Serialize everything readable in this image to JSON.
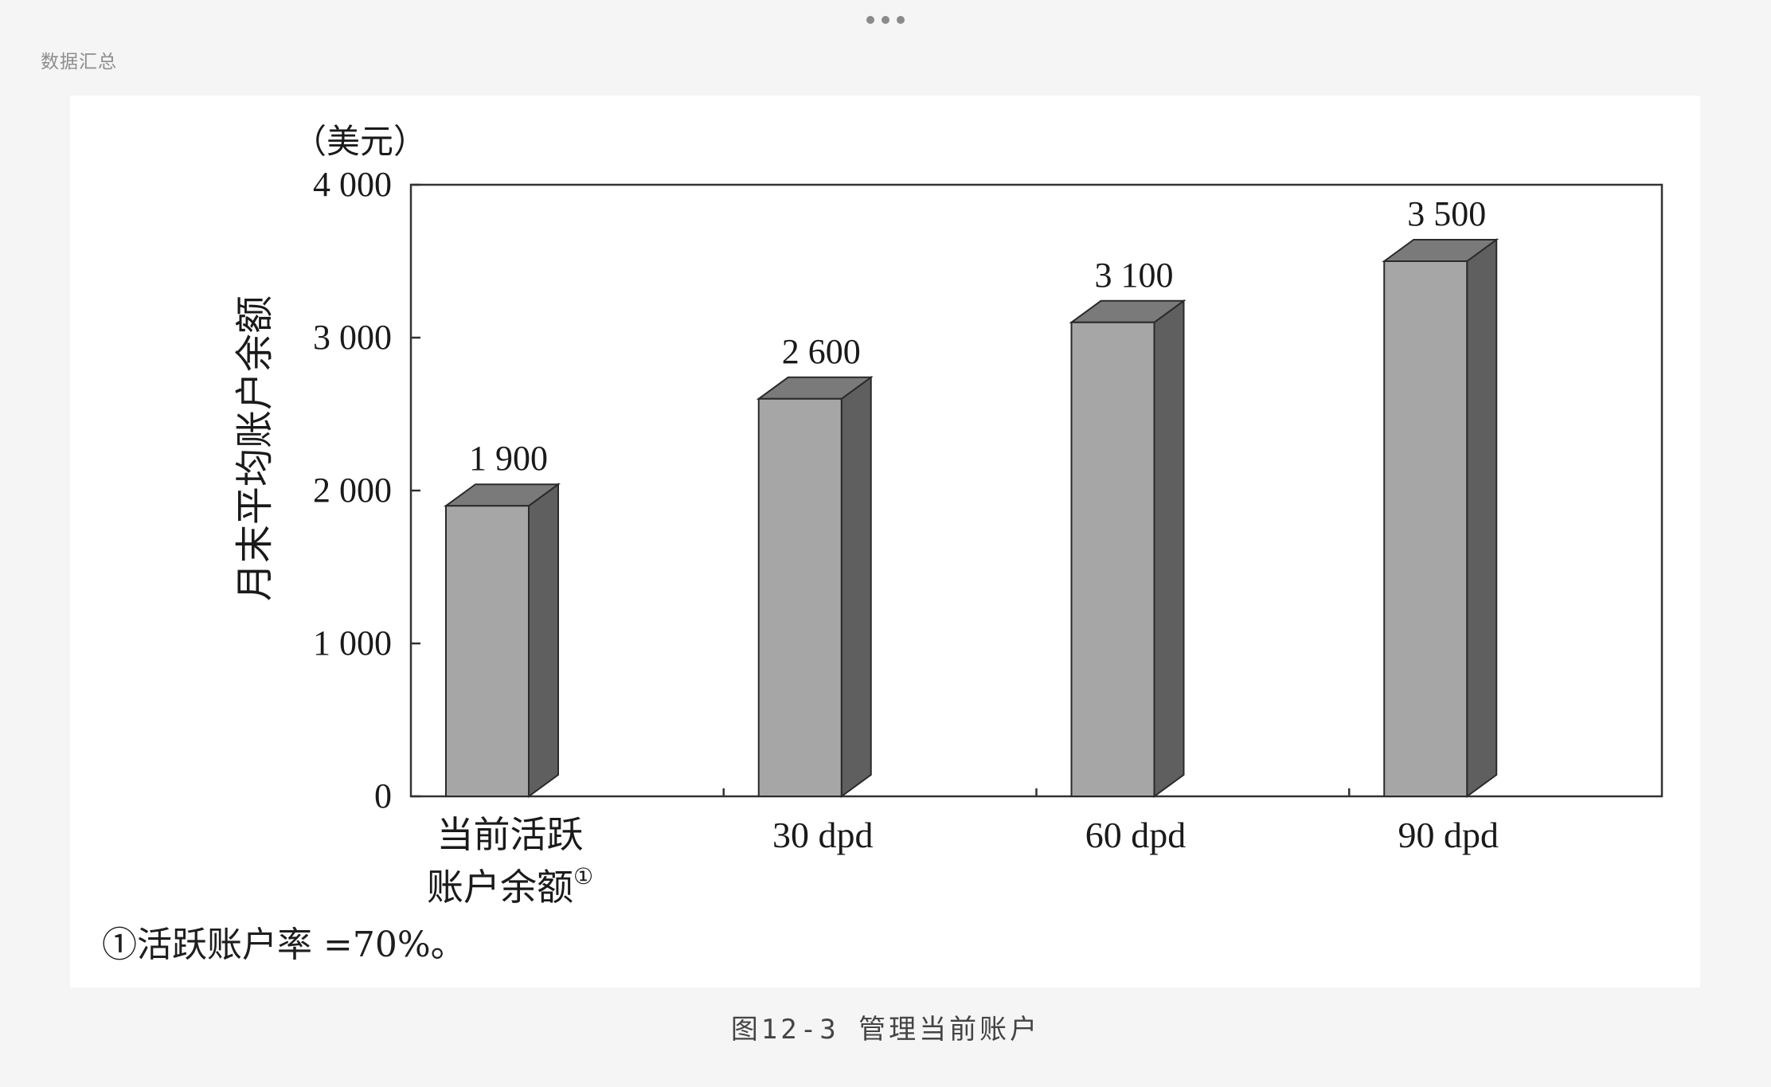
{
  "header": {
    "section_label": "数据汇总"
  },
  "figure": {
    "caption": "图12-3 管理当前账户",
    "footnote": "①活跃账户率 =70%。"
  },
  "colors": {
    "bar_front": "#a6a6a6",
    "bar_side": "#5f5f5f",
    "bar_top": "#7a7a7a",
    "axis": "#333333"
  },
  "chart_data": {
    "type": "bar",
    "style": "3d",
    "ylabel": "月末平均账户余额",
    "yunit": "（美元）",
    "ylim": [
      0,
      4000
    ],
    "yticks": [
      {
        "value": 0,
        "label": "0"
      },
      {
        "value": 1000,
        "label": "1 000"
      },
      {
        "value": 2000,
        "label": "2 000"
      },
      {
        "value": 3000,
        "label": "3 000"
      },
      {
        "value": 4000,
        "label": "4 000"
      }
    ],
    "categories": [
      {
        "lines": [
          "当前活跃",
          "账户余额"
        ],
        "sup": "①"
      },
      {
        "lines": [
          "30 dpd"
        ],
        "sup": ""
      },
      {
        "lines": [
          "60 dpd"
        ],
        "sup": ""
      },
      {
        "lines": [
          "90 dpd"
        ],
        "sup": ""
      }
    ],
    "values": [
      1900,
      2600,
      3100,
      3500
    ],
    "value_labels": [
      "1 900",
      "2 600",
      "3 100",
      "3 500"
    ],
    "grid": false,
    "legend": "none"
  }
}
